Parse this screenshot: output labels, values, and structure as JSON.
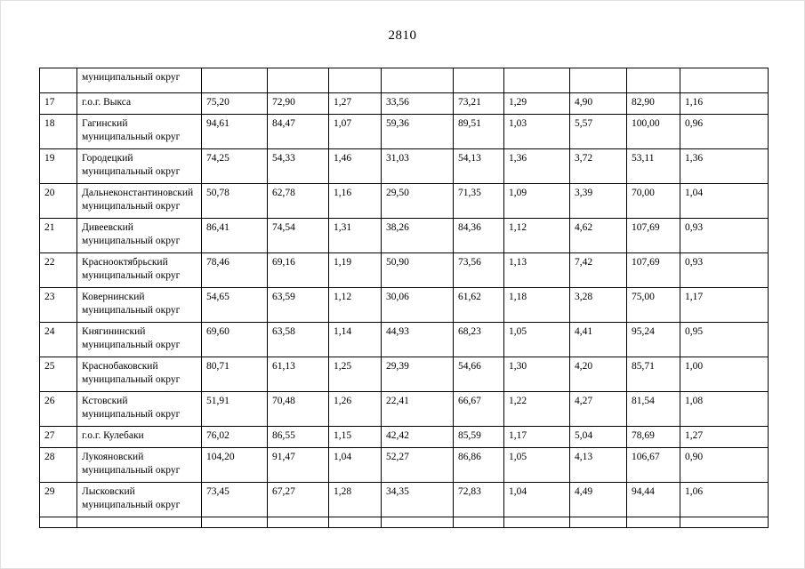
{
  "page": {
    "number": "2810"
  },
  "table": {
    "continuation_row": {
      "num": "",
      "name": "муниципальный округ",
      "values": [
        "",
        "",
        "",
        "",
        "",
        "",
        "",
        "",
        ""
      ]
    },
    "rows": [
      {
        "num": "17",
        "name": "г.о.г. Выкса",
        "values": [
          "75,20",
          "72,90",
          "1,27",
          "33,56",
          "73,21",
          "1,29",
          "4,90",
          "82,90",
          "1,16"
        ]
      },
      {
        "num": "18",
        "name": "Гагинский муниципальный округ",
        "values": [
          "94,61",
          "84,47",
          "1,07",
          "59,36",
          "89,51",
          "1,03",
          "5,57",
          "100,00",
          "0,96"
        ]
      },
      {
        "num": "19",
        "name": "Городецкий муниципальный округ",
        "values": [
          "74,25",
          "54,33",
          "1,46",
          "31,03",
          "54,13",
          "1,36",
          "3,72",
          "53,11",
          "1,36"
        ]
      },
      {
        "num": "20",
        "name": "Дальнеконстантиновский муниципальный округ",
        "values": [
          "50,78",
          "62,78",
          "1,16",
          "29,50",
          "71,35",
          "1,09",
          "3,39",
          "70,00",
          "1,04"
        ]
      },
      {
        "num": "21",
        "name": "Дивеевский муниципальный округ",
        "values": [
          "86,41",
          "74,54",
          "1,31",
          "38,26",
          "84,36",
          "1,12",
          "4,62",
          "107,69",
          "0,93"
        ]
      },
      {
        "num": "22",
        "name": "Краснооктябрьский муниципальный округ",
        "values": [
          "78,46",
          "69,16",
          "1,19",
          "50,90",
          "73,56",
          "1,13",
          "7,42",
          "107,69",
          "0,93"
        ]
      },
      {
        "num": "23",
        "name": "Ковернинский муниципальный округ",
        "values": [
          "54,65",
          "63,59",
          "1,12",
          "30,06",
          "61,62",
          "1,18",
          "3,28",
          "75,00",
          "1,17"
        ]
      },
      {
        "num": "24",
        "name": "Княгининский муниципальный округ",
        "values": [
          "69,60",
          "63,58",
          "1,14",
          "44,93",
          "68,23",
          "1,05",
          "4,41",
          "95,24",
          "0,95"
        ]
      },
      {
        "num": "25",
        "name": "Краснобаковский муниципальный округ",
        "values": [
          "80,71",
          "61,13",
          "1,25",
          "29,39",
          "54,66",
          "1,30",
          "4,20",
          "85,71",
          "1,00"
        ]
      },
      {
        "num": "26",
        "name": "Кстовский муниципальный округ",
        "values": [
          "51,91",
          "70,48",
          "1,26",
          "22,41",
          "66,67",
          "1,22",
          "4,27",
          "81,54",
          "1,08"
        ]
      },
      {
        "num": "27",
        "name": "г.о.г. Кулебаки",
        "values": [
          "76,02",
          "86,55",
          "1,15",
          "42,42",
          "85,59",
          "1,17",
          "5,04",
          "78,69",
          "1,27"
        ]
      },
      {
        "num": "28",
        "name": "Лукояновский муниципальный округ",
        "values": [
          "104,20",
          "91,47",
          "1,04",
          "52,27",
          "86,86",
          "1,05",
          "4,13",
          "106,67",
          "0,90"
        ]
      },
      {
        "num": "29",
        "name": "Лысковский муниципальный округ",
        "values": [
          "73,45",
          "67,27",
          "1,28",
          "34,35",
          "72,83",
          "1,04",
          "4,49",
          "94,44",
          "1,06"
        ]
      }
    ]
  }
}
